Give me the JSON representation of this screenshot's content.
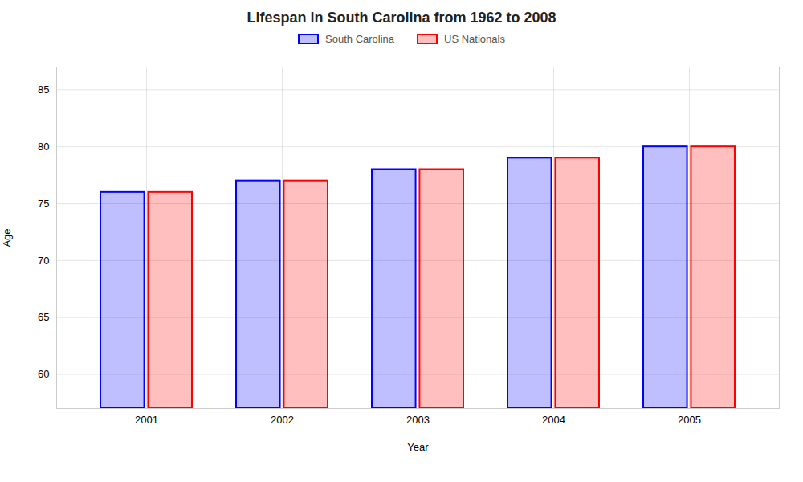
{
  "chart_data": {
    "type": "bar",
    "title": "Lifespan in South Carolina from 1962 to 2008",
    "xlabel": "Year",
    "ylabel": "Age",
    "categories": [
      "2001",
      "2002",
      "2003",
      "2004",
      "2005"
    ],
    "series": [
      {
        "name": "South Carolina",
        "color": "#0000ff",
        "values": [
          76,
          77,
          78,
          79,
          80
        ]
      },
      {
        "name": "US Nationals",
        "color": "#ff0000",
        "values": [
          76,
          77,
          78,
          79,
          80
        ]
      }
    ],
    "ylim": [
      57,
      87
    ],
    "yticks": [
      60,
      65,
      70,
      75,
      80,
      85
    ],
    "grid": true,
    "legend": "top"
  }
}
